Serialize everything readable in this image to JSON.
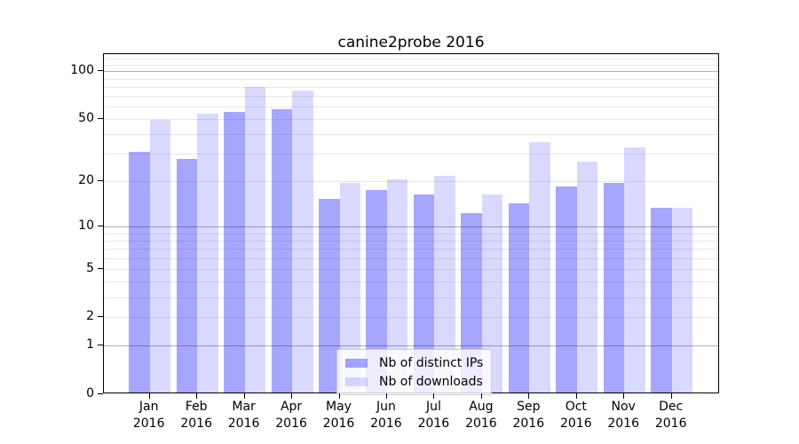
{
  "chart_data": {
    "type": "bar",
    "title": "canine2probe 2016",
    "categories": [
      {
        "month": "Jan",
        "year": "2016"
      },
      {
        "month": "Feb",
        "year": "2016"
      },
      {
        "month": "Mar",
        "year": "2016"
      },
      {
        "month": "Apr",
        "year": "2016"
      },
      {
        "month": "May",
        "year": "2016"
      },
      {
        "month": "Jun",
        "year": "2016"
      },
      {
        "month": "Jul",
        "year": "2016"
      },
      {
        "month": "Aug",
        "year": "2016"
      },
      {
        "month": "Sep",
        "year": "2016"
      },
      {
        "month": "Oct",
        "year": "2016"
      },
      {
        "month": "Nov",
        "year": "2016"
      },
      {
        "month": "Dec",
        "year": "2016"
      }
    ],
    "series": [
      {
        "key": "distinct-ips",
        "name": "Nb of distinct IPs",
        "color": "rgba(0,0,255,0.35)",
        "values": [
          30,
          27,
          54,
          56,
          15,
          17,
          16,
          12,
          14,
          18,
          19,
          13
        ]
      },
      {
        "key": "downloads",
        "name": "Nb of downloads",
        "color": "rgba(0,0,255,0.15)",
        "values": [
          48,
          53,
          78,
          74,
          19,
          20,
          21,
          16,
          35,
          26,
          32,
          13
        ]
      }
    ],
    "yscale": "log1p",
    "ylim": [
      0,
      128
    ],
    "ytick_values": [
      100,
      50,
      20,
      10,
      5,
      2,
      1,
      0
    ],
    "major_grid_values": [
      1,
      10,
      100
    ],
    "minor_grid_values": [
      2,
      3,
      4,
      5,
      6,
      7,
      8,
      9,
      20,
      30,
      40,
      50,
      60,
      70,
      80,
      90,
      110,
      120
    ],
    "grid": true,
    "legend_position": "lower center",
    "colors": {
      "major_grid": "#b0b0b0",
      "minor_grid": "#e7e7e7",
      "axis": "#000000",
      "background": "#ffffff"
    }
  }
}
